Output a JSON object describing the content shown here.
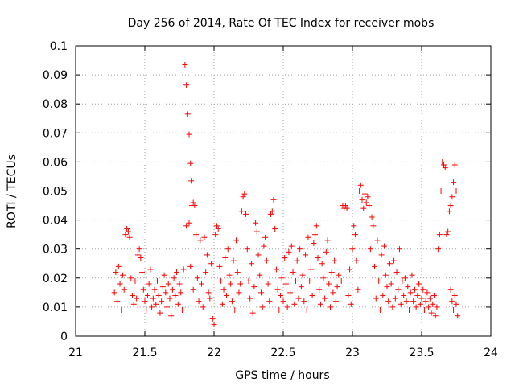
{
  "chart_data": {
    "type": "scatter",
    "title": "Day 256 of 2014, Rate Of TEC Index for receiver mobs",
    "xlabel": "GPS time / hours",
    "ylabel": "ROTI / TECUs",
    "xlim": [
      21,
      24
    ],
    "ylim": [
      0,
      0.1
    ],
    "xticks": [
      21,
      21.5,
      22,
      22.5,
      23,
      23.5,
      24
    ],
    "xtick_labels": [
      "21",
      "21.5",
      "22",
      "22.5",
      "23",
      "23.5",
      "24"
    ],
    "yticks": [
      0,
      0.01,
      0.02,
      0.03,
      0.04,
      0.05,
      0.06,
      0.07,
      0.08,
      0.09,
      0.1
    ],
    "ytick_labels": [
      "0",
      "0.01",
      "0.02",
      "0.03",
      "0.04",
      "0.05",
      "0.06",
      "0.07",
      "0.08",
      "0.09",
      "0.1"
    ],
    "grid": true,
    "marker": "+",
    "marker_color": "#ff0000",
    "series": [
      {
        "name": "ROTI",
        "points": [
          [
            21.28,
            0.015
          ],
          [
            21.29,
            0.022
          ],
          [
            21.3,
            0.012
          ],
          [
            21.31,
            0.024
          ],
          [
            21.32,
            0.018
          ],
          [
            21.33,
            0.009
          ],
          [
            21.34,
            0.021
          ],
          [
            21.35,
            0.016
          ],
          [
            21.36,
            0.035
          ],
          [
            21.37,
            0.037
          ],
          [
            21.38,
            0.036
          ],
          [
            21.39,
            0.034
          ],
          [
            21.4,
            0.02
          ],
          [
            21.41,
            0.014
          ],
          [
            21.42,
            0.011
          ],
          [
            21.43,
            0.019
          ],
          [
            21.44,
            0.013
          ],
          [
            21.45,
            0.028
          ],
          [
            21.46,
            0.03
          ],
          [
            21.47,
            0.027
          ],
          [
            21.48,
            0.022
          ],
          [
            21.49,
            0.016
          ],
          [
            21.5,
            0.012
          ],
          [
            21.51,
            0.009
          ],
          [
            21.52,
            0.014
          ],
          [
            21.53,
            0.018
          ],
          [
            21.54,
            0.023
          ],
          [
            21.55,
            0.01
          ],
          [
            21.56,
            0.013
          ],
          [
            21.57,
            0.016
          ],
          [
            21.58,
            0.011
          ],
          [
            21.59,
            0.019
          ],
          [
            21.6,
            0.014
          ],
          [
            21.61,
            0.008
          ],
          [
            21.62,
            0.012
          ],
          [
            21.63,
            0.017
          ],
          [
            21.64,
            0.021
          ],
          [
            21.65,
            0.015
          ],
          [
            21.66,
            0.01
          ],
          [
            21.67,
            0.018
          ],
          [
            21.68,
            0.013
          ],
          [
            21.69,
            0.007
          ],
          [
            21.7,
            0.016
          ],
          [
            21.71,
            0.02
          ],
          [
            21.72,
            0.014
          ],
          [
            21.73,
            0.022
          ],
          [
            21.74,
            0.011
          ],
          [
            21.75,
            0.018
          ],
          [
            21.76,
            0.015
          ],
          [
            21.77,
            0.009
          ],
          [
            21.78,
            0.023
          ],
          [
            21.79,
            0.0935
          ],
          [
            21.8,
            0.0865
          ],
          [
            21.81,
            0.0765
          ],
          [
            21.82,
            0.0695
          ],
          [
            21.83,
            0.0595
          ],
          [
            21.835,
            0.0535
          ],
          [
            21.84,
            0.045
          ],
          [
            21.85,
            0.046
          ],
          [
            21.86,
            0.045
          ],
          [
            21.8,
            0.038
          ],
          [
            21.82,
            0.039
          ],
          [
            21.83,
            0.024
          ],
          [
            21.85,
            0.016
          ],
          [
            21.87,
            0.035
          ],
          [
            21.88,
            0.02
          ],
          [
            21.89,
            0.012
          ],
          [
            21.9,
            0.033
          ],
          [
            21.91,
            0.018
          ],
          [
            21.92,
            0.01
          ],
          [
            21.93,
            0.034
          ],
          [
            21.94,
            0.022
          ],
          [
            21.95,
            0.028
          ],
          [
            21.96,
            0.015
          ],
          [
            21.97,
            0.013
          ],
          [
            21.98,
            0.025
          ],
          [
            21.99,
            0.006
          ],
          [
            22.0,
            0.004
          ],
          [
            22.01,
            0.035
          ],
          [
            22.02,
            0.038
          ],
          [
            22.03,
            0.037
          ],
          [
            22.04,
            0.024
          ],
          [
            22.05,
            0.019
          ],
          [
            22.06,
            0.011
          ],
          [
            22.07,
            0.016
          ],
          [
            22.08,
            0.027
          ],
          [
            22.09,
            0.014
          ],
          [
            22.1,
            0.03
          ],
          [
            22.11,
            0.021
          ],
          [
            22.12,
            0.018
          ],
          [
            22.13,
            0.012
          ],
          [
            22.14,
            0.026
          ],
          [
            22.15,
            0.009
          ],
          [
            22.16,
            0.033
          ],
          [
            22.17,
            0.022
          ],
          [
            22.18,
            0.015
          ],
          [
            22.19,
            0.018
          ],
          [
            22.2,
            0.043
          ],
          [
            22.21,
            0.048
          ],
          [
            22.22,
            0.049
          ],
          [
            22.23,
            0.042
          ],
          [
            22.24,
            0.03
          ],
          [
            22.25,
            0.019
          ],
          [
            22.26,
            0.013
          ],
          [
            22.27,
            0.025
          ],
          [
            22.28,
            0.008
          ],
          [
            22.29,
            0.017
          ],
          [
            22.3,
            0.039
          ],
          [
            22.31,
            0.036
          ],
          [
            22.32,
            0.028
          ],
          [
            22.33,
            0.021
          ],
          [
            22.34,
            0.015
          ],
          [
            22.35,
            0.01
          ],
          [
            22.36,
            0.031
          ],
          [
            22.37,
            0.034
          ],
          [
            22.38,
            0.026
          ],
          [
            22.39,
            0.018
          ],
          [
            22.4,
            0.012
          ],
          [
            22.41,
            0.042
          ],
          [
            22.42,
            0.043
          ],
          [
            22.43,
            0.047
          ],
          [
            22.44,
            0.037
          ],
          [
            22.45,
            0.023
          ],
          [
            22.46,
            0.016
          ],
          [
            22.47,
            0.009
          ],
          [
            22.48,
            0.014
          ],
          [
            22.49,
            0.02
          ],
          [
            22.5,
            0.012
          ],
          [
            22.51,
            0.027
          ],
          [
            22.52,
            0.018
          ],
          [
            22.53,
            0.01
          ],
          [
            22.54,
            0.029
          ],
          [
            22.55,
            0.015
          ],
          [
            22.56,
            0.031
          ],
          [
            22.57,
            0.022
          ],
          [
            22.58,
            0.011
          ],
          [
            22.59,
            0.019
          ],
          [
            22.6,
            0.026
          ],
          [
            22.61,
            0.013
          ],
          [
            22.62,
            0.03
          ],
          [
            22.63,
            0.017
          ],
          [
            22.64,
            0.021
          ],
          [
            22.65,
            0.012
          ],
          [
            22.66,
            0.028
          ],
          [
            22.67,
            0.009
          ],
          [
            22.68,
            0.034
          ],
          [
            22.69,
            0.019
          ],
          [
            22.7,
            0.023
          ],
          [
            22.71,
            0.014
          ],
          [
            22.72,
            0.032
          ],
          [
            22.73,
            0.035
          ],
          [
            22.74,
            0.038
          ],
          [
            22.75,
            0.027
          ],
          [
            22.76,
            0.016
          ],
          [
            22.77,
            0.011
          ],
          [
            22.78,
            0.025
          ],
          [
            22.79,
            0.02
          ],
          [
            22.8,
            0.013
          ],
          [
            22.81,
            0.029
          ],
          [
            22.82,
            0.033
          ],
          [
            22.83,
            0.018
          ],
          [
            22.84,
            0.01
          ],
          [
            22.85,
            0.022
          ],
          [
            22.86,
            0.015
          ],
          [
            22.87,
            0.026
          ],
          [
            22.88,
            0.012
          ],
          [
            22.89,
            0.017
          ],
          [
            22.9,
            0.021
          ],
          [
            22.91,
            0.009
          ],
          [
            22.92,
            0.019
          ],
          [
            22.93,
            0.045
          ],
          [
            22.94,
            0.044
          ],
          [
            22.95,
            0.045
          ],
          [
            22.96,
            0.044
          ],
          [
            22.97,
            0.014
          ],
          [
            22.98,
            0.023
          ],
          [
            22.99,
            0.011
          ],
          [
            23.0,
            0.03
          ],
          [
            23.01,
            0.038
          ],
          [
            23.02,
            0.035
          ],
          [
            23.03,
            0.026
          ],
          [
            23.04,
            0.016
          ],
          [
            23.05,
            0.05
          ],
          [
            23.06,
            0.052
          ],
          [
            23.07,
            0.047
          ],
          [
            23.08,
            0.044
          ],
          [
            23.09,
            0.049
          ],
          [
            23.1,
            0.046
          ],
          [
            23.11,
            0.048
          ],
          [
            23.12,
            0.045
          ],
          [
            23.13,
            0.03
          ],
          [
            23.14,
            0.041
          ],
          [
            23.15,
            0.038
          ],
          [
            23.16,
            0.024
          ],
          [
            23.17,
            0.013
          ],
          [
            23.18,
            0.033
          ],
          [
            23.19,
            0.019
          ],
          [
            23.2,
            0.009
          ],
          [
            23.21,
            0.028
          ],
          [
            23.22,
            0.014
          ],
          [
            23.23,
            0.031
          ],
          [
            23.24,
            0.021
          ],
          [
            23.25,
            0.017
          ],
          [
            23.26,
            0.012
          ],
          [
            23.27,
            0.025
          ],
          [
            23.28,
            0.018
          ],
          [
            23.29,
            0.01
          ],
          [
            23.3,
            0.026
          ],
          [
            23.31,
            0.013
          ],
          [
            23.32,
            0.022
          ],
          [
            23.33,
            0.016
          ],
          [
            23.34,
            0.03
          ],
          [
            23.35,
            0.011
          ],
          [
            23.36,
            0.019
          ],
          [
            23.37,
            0.014
          ],
          [
            23.38,
            0.02
          ],
          [
            23.39,
            0.012
          ],
          [
            23.4,
            0.017
          ],
          [
            23.41,
            0.009
          ],
          [
            23.42,
            0.015
          ],
          [
            23.43,
            0.021
          ],
          [
            23.44,
            0.012
          ],
          [
            23.45,
            0.016
          ],
          [
            23.46,
            0.01
          ],
          [
            23.47,
            0.014
          ],
          [
            23.48,
            0.018
          ],
          [
            23.49,
            0.011
          ],
          [
            23.5,
            0.013
          ],
          [
            23.51,
            0.016
          ],
          [
            23.52,
            0.009
          ],
          [
            23.53,
            0.012
          ],
          [
            23.54,
            0.015
          ],
          [
            23.55,
            0.01
          ],
          [
            23.56,
            0.013
          ],
          [
            23.57,
            0.008
          ],
          [
            23.58,
            0.011
          ],
          [
            23.59,
            0.014
          ],
          [
            23.6,
            0.007
          ],
          [
            23.61,
            0.01
          ],
          [
            23.62,
            0.03
          ],
          [
            23.63,
            0.035
          ],
          [
            23.64,
            0.05
          ],
          [
            23.65,
            0.06
          ],
          [
            23.66,
            0.059
          ],
          [
            23.67,
            0.058
          ],
          [
            23.68,
            0.035
          ],
          [
            23.69,
            0.036
          ],
          [
            23.7,
            0.043
          ],
          [
            23.71,
            0.045
          ],
          [
            23.72,
            0.048
          ],
          [
            23.73,
            0.053
          ],
          [
            23.74,
            0.059
          ],
          [
            23.75,
            0.05
          ],
          [
            23.71,
            0.016
          ],
          [
            23.72,
            0.012
          ],
          [
            23.73,
            0.009
          ],
          [
            23.74,
            0.014
          ],
          [
            23.75,
            0.011
          ],
          [
            23.76,
            0.007
          ]
        ]
      }
    ]
  }
}
